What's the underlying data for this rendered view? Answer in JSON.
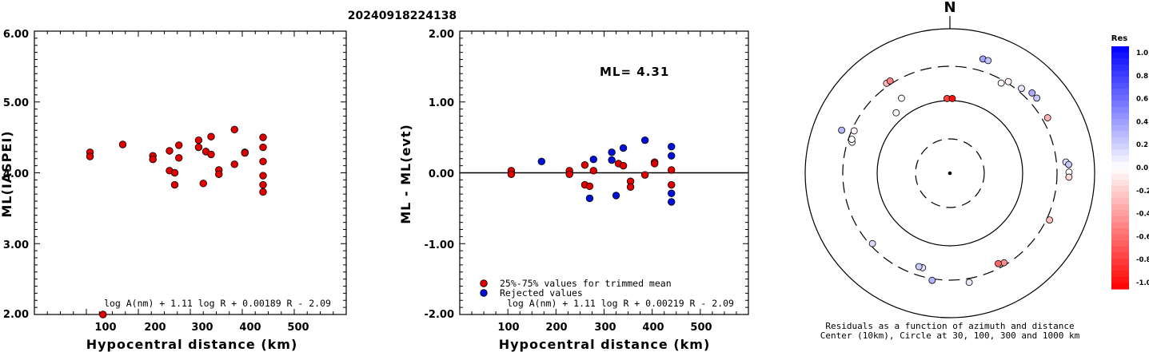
{
  "title": "20240918224138",
  "colors": {
    "accepted": "#e00000",
    "rejected": "#0010d8",
    "marker_edge": "#000000"
  },
  "chart_data": [
    {
      "type": "scatter",
      "xlabel": "Hypocentral distance (km)",
      "ylabel": "ML(IASPEI)",
      "xlim": [
        0,
        600
      ],
      "ylim": [
        2.0,
        6.0
      ],
      "xticks": [
        "100",
        "200",
        "300",
        "400",
        "500"
      ],
      "yticks": [
        "2.00",
        "3.00",
        "4.00",
        "5.00",
        "6.00"
      ],
      "formula": "log A(nm) + 1.11 log R + 0.00189 R - 2.09",
      "series": [
        {
          "color": "#e00000",
          "points": [
            [
              107,
              4.29
            ],
            [
              107,
              4.23
            ],
            [
              170,
              4.4
            ],
            [
              228,
              4.24
            ],
            [
              228,
              4.19
            ],
            [
              260,
              4.31
            ],
            [
              260,
              4.03
            ],
            [
              270,
              4.0
            ],
            [
              270,
              3.83
            ],
            [
              278,
              4.39
            ],
            [
              278,
              4.21
            ],
            [
              316,
              4.46
            ],
            [
              316,
              4.36
            ],
            [
              325,
              3.85
            ],
            [
              330,
              4.3
            ],
            [
              340,
              4.26
            ],
            [
              340,
              4.51
            ],
            [
              355,
              4.04
            ],
            [
              355,
              3.98
            ],
            [
              385,
              4.61
            ],
            [
              385,
              4.12
            ],
            [
              405,
              4.29
            ],
            [
              405,
              4.28
            ],
            [
              440,
              4.5
            ],
            [
              440,
              4.36
            ],
            [
              440,
              4.16
            ],
            [
              440,
              3.96
            ],
            [
              440,
              3.83
            ],
            [
              440,
              3.73
            ],
            [
              132,
              2.0
            ]
          ]
        }
      ]
    },
    {
      "type": "scatter",
      "xlabel": "Hypocentral distance (km)",
      "ylabel": "ML - ML(evt)",
      "xlim": [
        0,
        600
      ],
      "ylim": [
        -2.0,
        2.0
      ],
      "xticks": [
        "100",
        "200",
        "300",
        "400",
        "500"
      ],
      "yticks": [
        "-2.00",
        "-1.00",
        "0.00",
        "1.00",
        "2.00"
      ],
      "annotation": "ML= 4.31",
      "formula": "log A(nm) + 1.11 log R + 0.00219 R - 2.09",
      "legend": [
        "25%-75% values for trimmed mean",
        "Rejected values"
      ],
      "series": [
        {
          "name": "25%-75% values for trimmed mean",
          "color": "#e00000",
          "points": [
            [
              107,
              0.03
            ],
            [
              107,
              -0.02
            ],
            [
              228,
              0.03
            ],
            [
              228,
              -0.02
            ],
            [
              260,
              0.11
            ],
            [
              260,
              -0.17
            ],
            [
              270,
              -0.19
            ],
            [
              278,
              0.03
            ],
            [
              330,
              0.13
            ],
            [
              340,
              0.1
            ],
            [
              355,
              -0.12
            ],
            [
              355,
              -0.2
            ],
            [
              385,
              -0.03
            ],
            [
              405,
              0.15
            ],
            [
              405,
              0.13
            ],
            [
              440,
              0.04
            ],
            [
              440,
              -0.17
            ]
          ]
        },
        {
          "name": "Rejected values",
          "color": "#0010d8",
          "points": [
            [
              170,
              0.16
            ],
            [
              270,
              -0.36
            ],
            [
              278,
              0.19
            ],
            [
              316,
              0.29
            ],
            [
              316,
              0.18
            ],
            [
              325,
              -0.32
            ],
            [
              340,
              0.35
            ],
            [
              385,
              0.46
            ],
            [
              440,
              0.37
            ],
            [
              440,
              0.24
            ],
            [
              440,
              -0.29
            ],
            [
              440,
              -0.41
            ]
          ]
        }
      ]
    },
    {
      "type": "polar-scatter",
      "north_label": "N",
      "caption_line1": "Residuals as a function of azimuth and distance",
      "caption_line2": "Center (10km), Circle at 30, 100, 300 and 1000 km",
      "colorbar": {
        "title": "Res",
        "labels": [
          "1.0",
          "0.8",
          "0.6",
          "0.4",
          "0.2",
          "0.0",
          "-0.2",
          "-0.4",
          "-0.6",
          "-0.8",
          "-1.0"
        ],
        "range": [
          -1.0,
          1.0
        ]
      },
      "points": [
        {
          "az": 16.1,
          "dist_km": 440,
          "res": 0.37
        },
        {
          "az": 18.7,
          "dist_km": 440,
          "res": 0.24
        },
        {
          "az": 29.6,
          "dist_km": 270,
          "res": -0.02
        },
        {
          "az": 32.5,
          "dist_km": 316,
          "res": -0.04
        },
        {
          "az": 40.1,
          "dist_km": 340,
          "res": 0.1
        },
        {
          "az": 45.6,
          "dist_km": 385,
          "res": 0.32
        },
        {
          "az": 49.1,
          "dist_km": 385,
          "res": 0.22
        },
        {
          "az": 60.4,
          "dist_km": 355,
          "res": -0.3
        },
        {
          "az": 84.5,
          "dist_km": 405,
          "res": 0.14
        },
        {
          "az": 85.8,
          "dist_km": 440,
          "res": 0.22
        },
        {
          "az": 89.5,
          "dist_km": 440,
          "res": 0.0
        },
        {
          "az": 91.9,
          "dist_km": 440,
          "res": -0.15
        },
        {
          "az": 115.2,
          "dist_km": 330,
          "res": -0.25
        },
        {
          "az": 148.9,
          "dist_km": 278,
          "res": -0.45
        },
        {
          "az": 151.9,
          "dist_km": 260,
          "res": -0.6
        },
        {
          "az": 170.0,
          "dist_km": 340,
          "res": 0.08
        },
        {
          "az": 189.4,
          "dist_km": 316,
          "res": 0.3
        },
        {
          "az": 196.1,
          "dist_km": 228,
          "res": 0.12
        },
        {
          "az": 198.3,
          "dist_km": 228,
          "res": 0.2
        },
        {
          "az": 227.7,
          "dist_km": 278,
          "res": 0.15
        },
        {
          "az": 287.6,
          "dist_km": 260,
          "res": -0.02
        },
        {
          "az": 289.1,
          "dist_km": 270,
          "res": 0.0
        },
        {
          "az": 291.7,
          "dist_km": 405,
          "res": 0.28
        },
        {
          "az": 293.9,
          "dist_km": 278,
          "res": -0.03
        },
        {
          "az": 318.4,
          "dist_km": 130,
          "res": -0.02
        },
        {
          "az": 324.9,
          "dist_km": 330,
          "res": -0.28
        },
        {
          "az": 327.1,
          "dist_km": 330,
          "res": -0.5
        },
        {
          "az": 327.2,
          "dist_km": 170,
          "res": 0.0
        },
        {
          "az": 357.8,
          "dist_km": 107,
          "res": -0.75
        },
        {
          "az": 1.8,
          "dist_km": 107,
          "res": -0.95
        }
      ]
    }
  ]
}
